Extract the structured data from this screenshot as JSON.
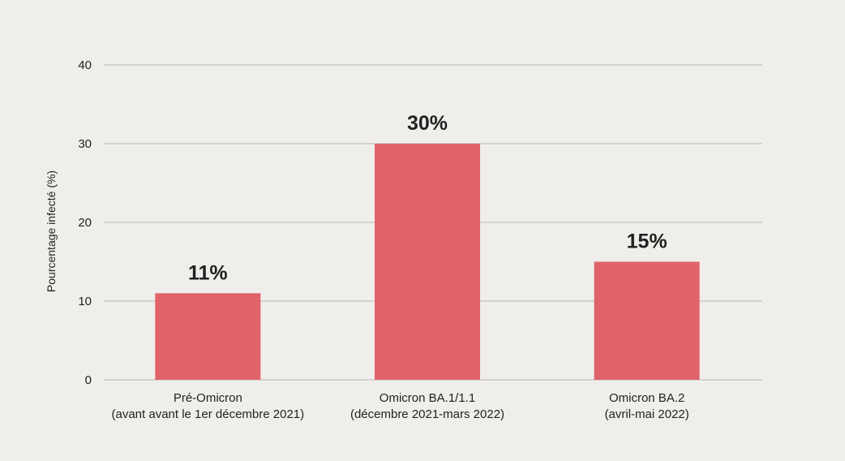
{
  "chart_data": {
    "type": "bar",
    "ylabel": "Pourcentage infecté (%)",
    "ylim": [
      0,
      40
    ],
    "yticks": [
      0,
      10,
      20,
      30,
      40
    ],
    "grid": true,
    "categories": [
      [
        "Pré-Omicron",
        "(avant avant le 1er décembre 2021)"
      ],
      [
        "Omicron BA.1/1.1",
        "(décembre 2021-mars 2022)"
      ],
      [
        "Omicron BA.2",
        "(avril-mai 2022)"
      ]
    ],
    "values": [
      11,
      30,
      15
    ],
    "value_labels": [
      "11%",
      "30%",
      "15%"
    ],
    "bar_color": "#e0636a",
    "grid_color": "#b8b6b3"
  }
}
